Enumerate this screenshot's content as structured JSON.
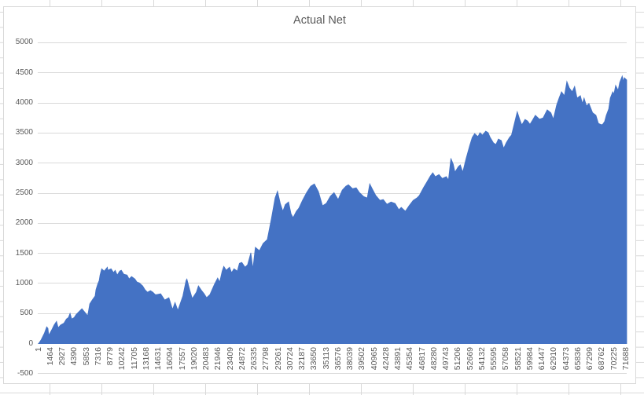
{
  "chart_data": {
    "type": "area",
    "title": "Actual Net",
    "xlabel": "",
    "ylabel": "",
    "ylim": [
      -500,
      5000
    ],
    "xlim": [
      1,
      71750
    ],
    "y_ticks": [
      -500,
      0,
      500,
      1000,
      1500,
      2000,
      2500,
      3000,
      3500,
      4000,
      4500,
      5000
    ],
    "x_tick_labels": [
      "1",
      "1464",
      "2927",
      "4390",
      "5853",
      "7316",
      "8779",
      "10242",
      "11705",
      "13168",
      "14631",
      "16094",
      "17557",
      "19020",
      "20483",
      "21946",
      "23409",
      "24872",
      "26335",
      "27798",
      "29261",
      "30724",
      "32187",
      "33650",
      "35113",
      "36576",
      "38039",
      "39502",
      "40965",
      "42428",
      "43891",
      "45354",
      "46817",
      "48280",
      "49743",
      "51206",
      "52669",
      "54132",
      "55595",
      "57058",
      "58521",
      "59984",
      "61447",
      "62910",
      "64373",
      "65836",
      "67299",
      "68762",
      "70225",
      "71688"
    ],
    "grid": "horizontal",
    "legend": "none",
    "colors": {
      "series_fill": "#4472C4",
      "gridline": "#d9d9d9",
      "axis_line": "#c9c9c9",
      "label": "#595959",
      "title": "#595959",
      "chart_border": "#d9d9d9",
      "spreadsheet_gridline": "#d9d9d9"
    },
    "series": [
      {
        "name": "Actual Net",
        "points": [
          [
            1,
            0
          ],
          [
            300,
            60
          ],
          [
            700,
            170
          ],
          [
            1000,
            280
          ],
          [
            1150,
            255
          ],
          [
            1250,
            140
          ],
          [
            1650,
            240
          ],
          [
            1900,
            310
          ],
          [
            2200,
            370
          ],
          [
            2400,
            265
          ],
          [
            2700,
            310
          ],
          [
            3100,
            340
          ],
          [
            3400,
            410
          ],
          [
            3650,
            435
          ],
          [
            3850,
            505
          ],
          [
            4050,
            410
          ],
          [
            4350,
            435
          ],
          [
            4600,
            485
          ],
          [
            5000,
            540
          ],
          [
            5300,
            580
          ],
          [
            5600,
            530
          ],
          [
            6000,
            465
          ],
          [
            6250,
            660
          ],
          [
            6550,
            725
          ],
          [
            6900,
            790
          ],
          [
            7000,
            895
          ],
          [
            7200,
            985
          ],
          [
            7400,
            1050
          ],
          [
            7500,
            1140
          ],
          [
            7700,
            1245
          ],
          [
            8000,
            1205
          ],
          [
            8400,
            1270
          ],
          [
            8450,
            1220
          ],
          [
            8850,
            1245
          ],
          [
            9150,
            1180
          ],
          [
            9350,
            1220
          ],
          [
            9600,
            1140
          ],
          [
            9900,
            1205
          ],
          [
            10100,
            1220
          ],
          [
            10400,
            1155
          ],
          [
            10800,
            1140
          ],
          [
            11050,
            1075
          ],
          [
            11350,
            1115
          ],
          [
            11750,
            1075
          ],
          [
            12000,
            1025
          ],
          [
            12300,
            1010
          ],
          [
            12700,
            960
          ],
          [
            13000,
            895
          ],
          [
            13300,
            855
          ],
          [
            13650,
            880
          ],
          [
            13950,
            855
          ],
          [
            14250,
            815
          ],
          [
            14400,
            815
          ],
          [
            14900,
            830
          ],
          [
            15400,
            725
          ],
          [
            15900,
            765
          ],
          [
            16350,
            570
          ],
          [
            16650,
            685
          ],
          [
            17000,
            555
          ],
          [
            17600,
            790
          ],
          [
            18000,
            1050
          ],
          [
            18100,
            1075
          ],
          [
            18450,
            895
          ],
          [
            18750,
            750
          ],
          [
            19250,
            855
          ],
          [
            19500,
            960
          ],
          [
            19900,
            880
          ],
          [
            20200,
            830
          ],
          [
            20500,
            765
          ],
          [
            20900,
            815
          ],
          [
            21450,
            985
          ],
          [
            21850,
            1090
          ],
          [
            22100,
            1025
          ],
          [
            22400,
            1205
          ],
          [
            22600,
            1285
          ],
          [
            22900,
            1220
          ],
          [
            23300,
            1270
          ],
          [
            23550,
            1180
          ],
          [
            23850,
            1245
          ],
          [
            24250,
            1205
          ],
          [
            24500,
            1335
          ],
          [
            24800,
            1350
          ],
          [
            25200,
            1270
          ],
          [
            25500,
            1310
          ],
          [
            25900,
            1510
          ],
          [
            26150,
            1245
          ],
          [
            26450,
            1600
          ],
          [
            26950,
            1545
          ],
          [
            27400,
            1665
          ],
          [
            27900,
            1730
          ],
          [
            28400,
            2075
          ],
          [
            28850,
            2420
          ],
          [
            29150,
            2535
          ],
          [
            29500,
            2330
          ],
          [
            29800,
            2200
          ],
          [
            30100,
            2310
          ],
          [
            30500,
            2355
          ],
          [
            30800,
            2160
          ],
          [
            31050,
            2095
          ],
          [
            31450,
            2200
          ],
          [
            31750,
            2250
          ],
          [
            32200,
            2380
          ],
          [
            32700,
            2510
          ],
          [
            33200,
            2615
          ],
          [
            33650,
            2655
          ],
          [
            34150,
            2525
          ],
          [
            34650,
            2290
          ],
          [
            35100,
            2330
          ],
          [
            35600,
            2450
          ],
          [
            36050,
            2510
          ],
          [
            36550,
            2395
          ],
          [
            37050,
            2550
          ],
          [
            37500,
            2615
          ],
          [
            37800,
            2640
          ],
          [
            38300,
            2575
          ],
          [
            38750,
            2590
          ],
          [
            39150,
            2510
          ],
          [
            39650,
            2445
          ],
          [
            40100,
            2420
          ],
          [
            40400,
            2655
          ],
          [
            40700,
            2575
          ],
          [
            41150,
            2460
          ],
          [
            41650,
            2380
          ],
          [
            42050,
            2395
          ],
          [
            42500,
            2315
          ],
          [
            43000,
            2355
          ],
          [
            43500,
            2330
          ],
          [
            43950,
            2225
          ],
          [
            44250,
            2265
          ],
          [
            44750,
            2200
          ],
          [
            45200,
            2290
          ],
          [
            45700,
            2380
          ],
          [
            46150,
            2420
          ],
          [
            46450,
            2460
          ],
          [
            46950,
            2590
          ],
          [
            47350,
            2680
          ],
          [
            47800,
            2785
          ],
          [
            48100,
            2840
          ],
          [
            48400,
            2775
          ],
          [
            48850,
            2810
          ],
          [
            49250,
            2745
          ],
          [
            49750,
            2775
          ],
          [
            50000,
            2720
          ],
          [
            50300,
            3080
          ],
          [
            50600,
            2980
          ],
          [
            50800,
            2850
          ],
          [
            51200,
            2940
          ],
          [
            51450,
            2970
          ],
          [
            51750,
            2850
          ],
          [
            52150,
            3075
          ],
          [
            52600,
            3295
          ],
          [
            52900,
            3425
          ],
          [
            53200,
            3490
          ],
          [
            53600,
            3440
          ],
          [
            53850,
            3505
          ],
          [
            54150,
            3465
          ],
          [
            54550,
            3530
          ],
          [
            54850,
            3505
          ],
          [
            55100,
            3425
          ],
          [
            55500,
            3335
          ],
          [
            55800,
            3310
          ],
          [
            56100,
            3400
          ],
          [
            56450,
            3375
          ],
          [
            56750,
            3245
          ],
          [
            57050,
            3335
          ],
          [
            57450,
            3425
          ],
          [
            57700,
            3465
          ],
          [
            58000,
            3635
          ],
          [
            58400,
            3855
          ],
          [
            58700,
            3725
          ],
          [
            58950,
            3635
          ],
          [
            59350,
            3725
          ],
          [
            59650,
            3700
          ],
          [
            59950,
            3645
          ],
          [
            60200,
            3700
          ],
          [
            60600,
            3795
          ],
          [
            61100,
            3730
          ],
          [
            61550,
            3750
          ],
          [
            62050,
            3885
          ],
          [
            62500,
            3835
          ],
          [
            62800,
            3730
          ],
          [
            63200,
            3965
          ],
          [
            63500,
            4080
          ],
          [
            63800,
            4185
          ],
          [
            64150,
            4120
          ],
          [
            64450,
            4355
          ],
          [
            64750,
            4250
          ],
          [
            65100,
            4185
          ],
          [
            65400,
            4275
          ],
          [
            65700,
            4080
          ],
          [
            66100,
            4120
          ],
          [
            66350,
            3990
          ],
          [
            66550,
            4080
          ],
          [
            66850,
            3950
          ],
          [
            67150,
            3990
          ],
          [
            67600,
            3835
          ],
          [
            68000,
            3795
          ],
          [
            68300,
            3660
          ],
          [
            68600,
            3640
          ],
          [
            68800,
            3640
          ],
          [
            69050,
            3690
          ],
          [
            69250,
            3790
          ],
          [
            69550,
            3900
          ],
          [
            69750,
            4080
          ],
          [
            70050,
            4185
          ],
          [
            70200,
            4145
          ],
          [
            70400,
            4290
          ],
          [
            70700,
            4210
          ],
          [
            70900,
            4340
          ],
          [
            71200,
            4445
          ],
          [
            71350,
            4355
          ],
          [
            71450,
            4420
          ],
          [
            71750,
            4380
          ]
        ]
      }
    ]
  }
}
